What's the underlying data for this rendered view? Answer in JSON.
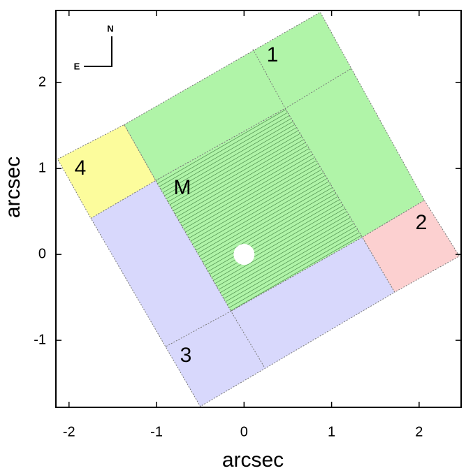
{
  "chart_data": {
    "type": "polygon",
    "xlabel": "arcsec",
    "ylabel": "arcsec",
    "xlim": [
      -2.15,
      2.48
    ],
    "ylim": [
      -1.78,
      2.84
    ],
    "xticks": [
      -2,
      -1,
      0,
      1,
      2
    ],
    "yticks": [
      -1,
      0,
      1,
      2
    ],
    "compass": {
      "north": "N",
      "east": "E"
    },
    "regions": [
      {
        "label": "1",
        "color": "#b0f4a8",
        "points": [
          [
            -1.37,
            1.51
          ],
          [
            0.87,
            2.82
          ],
          [
            2.06,
            0.63
          ],
          [
            1.35,
            0.2
          ],
          [
            0.47,
            1.7
          ],
          [
            -1.01,
            0.86
          ]
        ]
      },
      {
        "label": "4",
        "color": "#fcfc9c",
        "points": [
          [
            -2.13,
            1.11
          ],
          [
            -1.37,
            1.51
          ],
          [
            -1.01,
            0.86
          ],
          [
            -1.75,
            0.42
          ]
        ]
      },
      {
        "label": "2",
        "color": "#fcd0d0",
        "points": [
          [
            2.06,
            0.63
          ],
          [
            2.46,
            -0.02
          ],
          [
            1.72,
            -0.44
          ],
          [
            1.35,
            0.2
          ]
        ]
      },
      {
        "label": "3",
        "color": "#d8d8fc",
        "points": [
          [
            -1.75,
            0.42
          ],
          [
            -1.01,
            0.86
          ],
          [
            -0.15,
            -0.66
          ],
          [
            1.35,
            0.2
          ],
          [
            1.72,
            -0.44
          ],
          [
            -0.5,
            -1.77
          ]
        ]
      },
      {
        "label": "M",
        "color": "#b0f4a8",
        "hatched": true,
        "points": [
          [
            -1.01,
            0.86
          ],
          [
            0.47,
            1.7
          ],
          [
            1.35,
            0.2
          ],
          [
            -0.15,
            -0.66
          ]
        ]
      }
    ],
    "dividers": [
      [
        [
          0.1,
          2.39
        ],
        [
          0.47,
          1.7
        ],
        [
          1.22,
          2.16
        ]
      ],
      [
        [
          -0.89,
          -1.07
        ],
        [
          -0.15,
          -0.66
        ],
        [
          0.23,
          -1.31
        ]
      ]
    ],
    "hole": [
      0,
      0
    ]
  }
}
